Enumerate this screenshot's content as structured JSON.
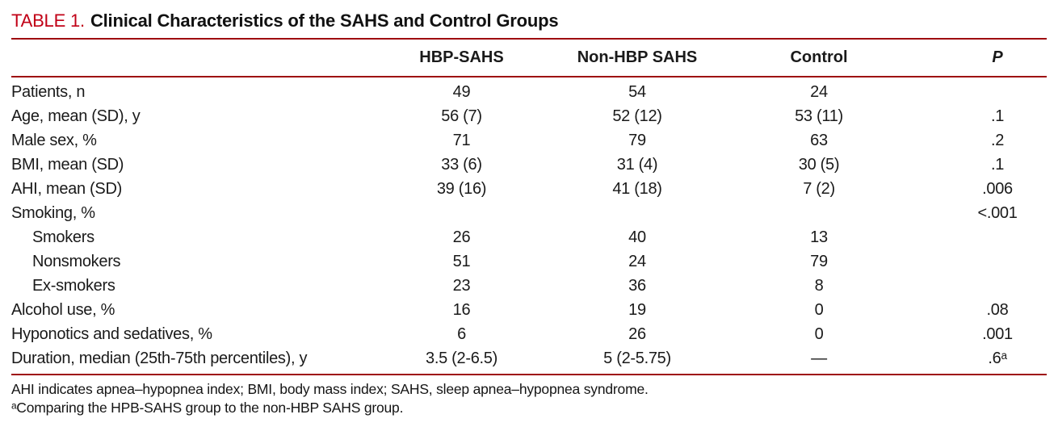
{
  "title": {
    "label": "TABLE 1.",
    "text": "Clinical Characteristics of the SAHS and Control Groups"
  },
  "colors": {
    "accent_red": "#C10016",
    "rule_red": "#9E0B0F",
    "text": "#1a1a1a"
  },
  "table": {
    "columns": [
      "",
      "HBP-SAHS",
      "Non-HBP SAHS",
      "Control",
      "P"
    ],
    "rows": [
      {
        "label": "Patients, n",
        "indent": false,
        "values": [
          "49",
          "54",
          "24",
          ""
        ]
      },
      {
        "label": "Age, mean (SD), y",
        "indent": false,
        "values": [
          "56 (7)",
          "52 (12)",
          "53 (11)",
          ".1"
        ]
      },
      {
        "label": "Male sex, %",
        "indent": false,
        "values": [
          "71",
          "79",
          "63",
          ".2"
        ]
      },
      {
        "label": "BMI, mean (SD)",
        "indent": false,
        "values": [
          "33 (6)",
          "31 (4)",
          "30 (5)",
          ".1"
        ]
      },
      {
        "label": "AHI, mean (SD)",
        "indent": false,
        "values": [
          "39 (16)",
          "41 (18)",
          "7 (2)",
          ".006"
        ]
      },
      {
        "label": "Smoking, %",
        "indent": false,
        "values": [
          "",
          "",
          "",
          "<.001"
        ]
      },
      {
        "label": "Smokers",
        "indent": true,
        "values": [
          "26",
          "40",
          "13",
          ""
        ]
      },
      {
        "label": "Nonsmokers",
        "indent": true,
        "values": [
          "51",
          "24",
          "79",
          ""
        ]
      },
      {
        "label": "Ex-smokers",
        "indent": true,
        "values": [
          "23",
          "36",
          "8",
          ""
        ]
      },
      {
        "label": "Alcohol use, %",
        "indent": false,
        "values": [
          "16",
          "19",
          "0",
          ".08"
        ]
      },
      {
        "label": "Hyponotics and sedatives, %",
        "indent": false,
        "values": [
          "6",
          "26",
          "0",
          ".001"
        ]
      },
      {
        "label": "Duration, median (25th-75th percentiles), y",
        "indent": false,
        "values": [
          "3.5 (2-6.5)",
          "5 (2-5.75)",
          "—",
          ".6ᵃ"
        ]
      }
    ]
  },
  "footnotes": [
    "AHI indicates apnea–hypopnea index; BMI, body mass index; SAHS, sleep apnea–hypopnea syndrome.",
    "ᵃComparing the HPB-SAHS group to the non-HBP SAHS group."
  ]
}
